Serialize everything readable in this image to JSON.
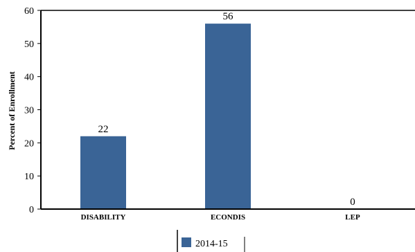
{
  "chart_data": {
    "type": "bar",
    "categories": [
      "DISABILITY",
      "ECONDIS",
      "LEP"
    ],
    "series": [
      {
        "name": "2014-15",
        "values": [
          22,
          56,
          0
        ],
        "color": "#3a6496"
      }
    ],
    "data_labels": [
      "22",
      "56",
      "0"
    ],
    "ylabel": "Percent of Enrollment",
    "xlabel": "",
    "ylim": [
      0,
      60
    ],
    "yticks": [
      0,
      10,
      20,
      30,
      40,
      50,
      60
    ],
    "grid": false,
    "legend_position": "bottom-center"
  }
}
